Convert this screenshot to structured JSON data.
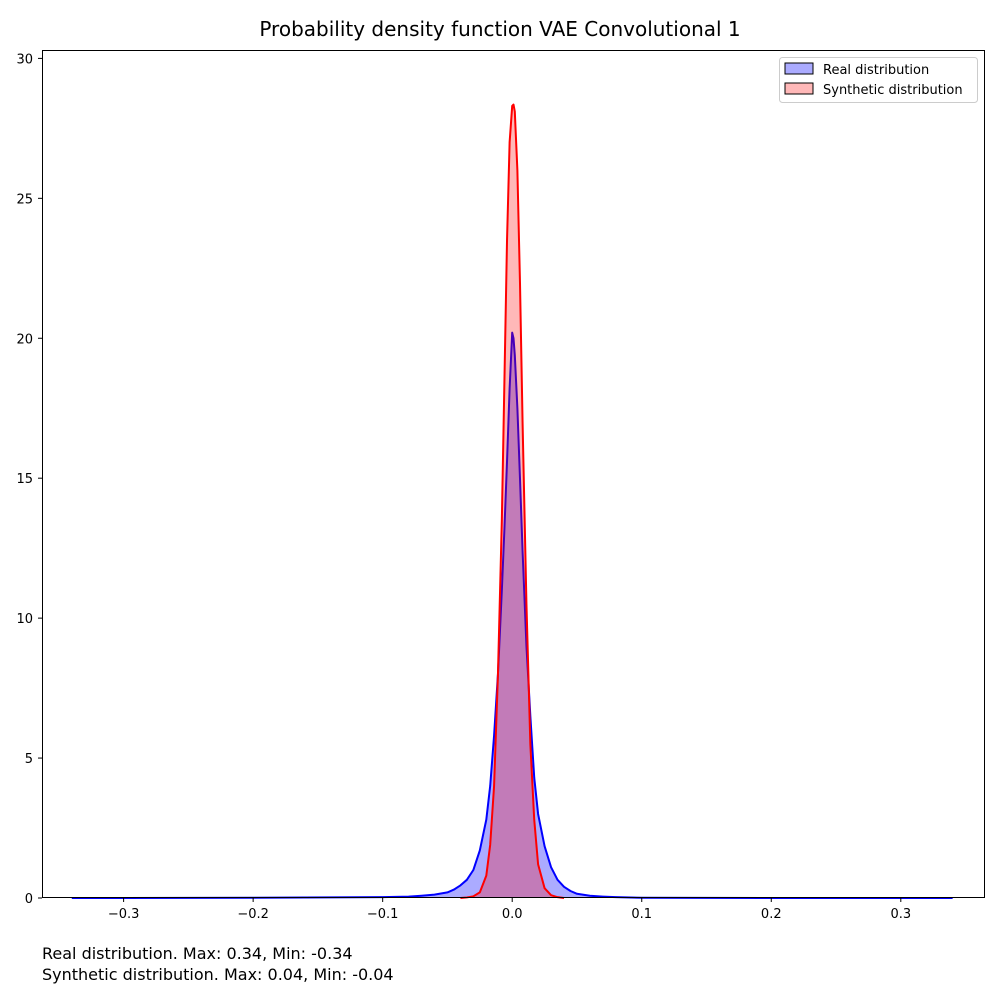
{
  "chart_data": {
    "type": "area",
    "title": "Probability density function VAE Convolutional 1",
    "xlabel": "",
    "ylabel": "",
    "xlim": [
      -0.363,
      0.365
    ],
    "ylim": [
      0,
      30.3
    ],
    "x_ticks": [
      -0.3,
      -0.2,
      -0.1,
      0.0,
      0.1,
      0.2,
      0.3
    ],
    "x_tick_labels": [
      "−0.3",
      "−0.2",
      "−0.1",
      "0.0",
      "0.1",
      "0.2",
      "0.3"
    ],
    "y_ticks": [
      0,
      5,
      10,
      15,
      20,
      25,
      30
    ],
    "y_tick_labels": [
      "0",
      "5",
      "10",
      "15",
      "20",
      "25",
      "30"
    ],
    "grid": false,
    "legend_position": "top-right",
    "series": [
      {
        "name": "Real distribution",
        "line_color": "#0000ff",
        "fill_color": "#0000ff",
        "fill_opacity": 0.33,
        "x": [
          -0.34,
          -0.3,
          -0.2,
          -0.1,
          -0.08,
          -0.07,
          -0.06,
          -0.05,
          -0.045,
          -0.04,
          -0.035,
          -0.03,
          -0.025,
          -0.02,
          -0.017,
          -0.014,
          -0.011,
          -0.008,
          -0.006,
          -0.004,
          -0.002,
          0.0,
          0.001,
          0.002,
          0.004,
          0.006,
          0.008,
          0.011,
          0.014,
          0.017,
          0.02,
          0.025,
          0.03,
          0.035,
          0.04,
          0.045,
          0.05,
          0.06,
          0.07,
          0.08,
          0.1,
          0.2,
          0.3,
          0.34
        ],
        "y": [
          0.0,
          0.0,
          0.01,
          0.03,
          0.05,
          0.08,
          0.12,
          0.2,
          0.3,
          0.45,
          0.65,
          1.0,
          1.7,
          2.8,
          4.0,
          5.8,
          8.0,
          11.0,
          13.2,
          15.6,
          18.2,
          20.2,
          20.0,
          19.4,
          17.5,
          15.0,
          12.4,
          9.0,
          6.5,
          4.3,
          3.0,
          1.85,
          1.1,
          0.65,
          0.4,
          0.25,
          0.15,
          0.08,
          0.05,
          0.03,
          0.01,
          0.0,
          0.0,
          0.0
        ]
      },
      {
        "name": "Synthetic distribution",
        "line_color": "#ff0000",
        "fill_color": "#ff0000",
        "fill_opacity": 0.28,
        "x": [
          -0.04,
          -0.035,
          -0.03,
          -0.025,
          -0.02,
          -0.017,
          -0.014,
          -0.011,
          -0.008,
          -0.006,
          -0.004,
          -0.002,
          0.0,
          0.001,
          0.002,
          0.004,
          0.006,
          0.008,
          0.011,
          0.014,
          0.017,
          0.02,
          0.025,
          0.03,
          0.035,
          0.04
        ],
        "y": [
          0.0,
          0.02,
          0.06,
          0.2,
          0.8,
          1.9,
          4.0,
          8.0,
          13.5,
          18.5,
          23.5,
          27.0,
          28.3,
          28.35,
          28.1,
          26.0,
          22.0,
          17.0,
          10.5,
          5.5,
          2.8,
          1.2,
          0.35,
          0.1,
          0.03,
          0.0
        ]
      }
    ]
  },
  "footnotes": {
    "real": "Real distribution. Max: 0.34, Min: -0.34",
    "synthetic": "Synthetic distribution. Max: 0.04, Min: -0.04"
  }
}
